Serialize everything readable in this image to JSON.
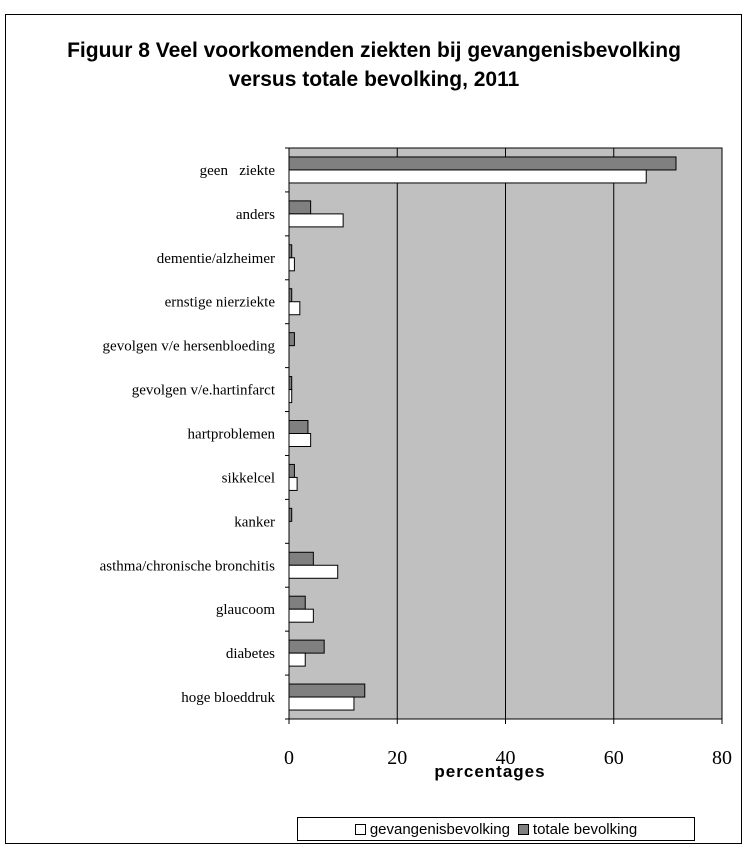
{
  "chart_data": {
    "type": "bar",
    "orientation": "horizontal",
    "title": "Figuur 8 Veel voorkomenden ziekten bij gevangenisbevolking versus totale bevolking, 2011",
    "xlabel": "percentages",
    "ylabel": "",
    "xlim": [
      0,
      80
    ],
    "xticks": [
      0,
      20,
      40,
      60,
      80
    ],
    "grid": true,
    "legend_position": "bottom",
    "categories": [
      "geen   ziekte",
      "anders",
      "dementie/alzheimer",
      "ernstige nierziekte",
      "gevolgen v/e hersenbloeding",
      "gevolgen v/e.hartinfarct",
      "hartproblemen",
      "sikkelcel",
      "kanker",
      "asthma/chronische bronchitis",
      "glaucoom",
      "diabetes",
      "hoge bloeddruk"
    ],
    "series": [
      {
        "name": "gevangenisbevolking",
        "color": "#ffffff",
        "values": [
          66,
          10,
          1,
          2,
          0,
          0.5,
          4,
          1.5,
          0,
          9,
          4.5,
          3,
          12
        ]
      },
      {
        "name": "totale bevolking",
        "color": "#808080",
        "values": [
          71.5,
          4,
          0.5,
          0.5,
          1,
          0.5,
          3.5,
          1,
          0.5,
          4.5,
          3,
          6.5,
          14
        ]
      }
    ],
    "plot_background": "#c0c0c0"
  }
}
